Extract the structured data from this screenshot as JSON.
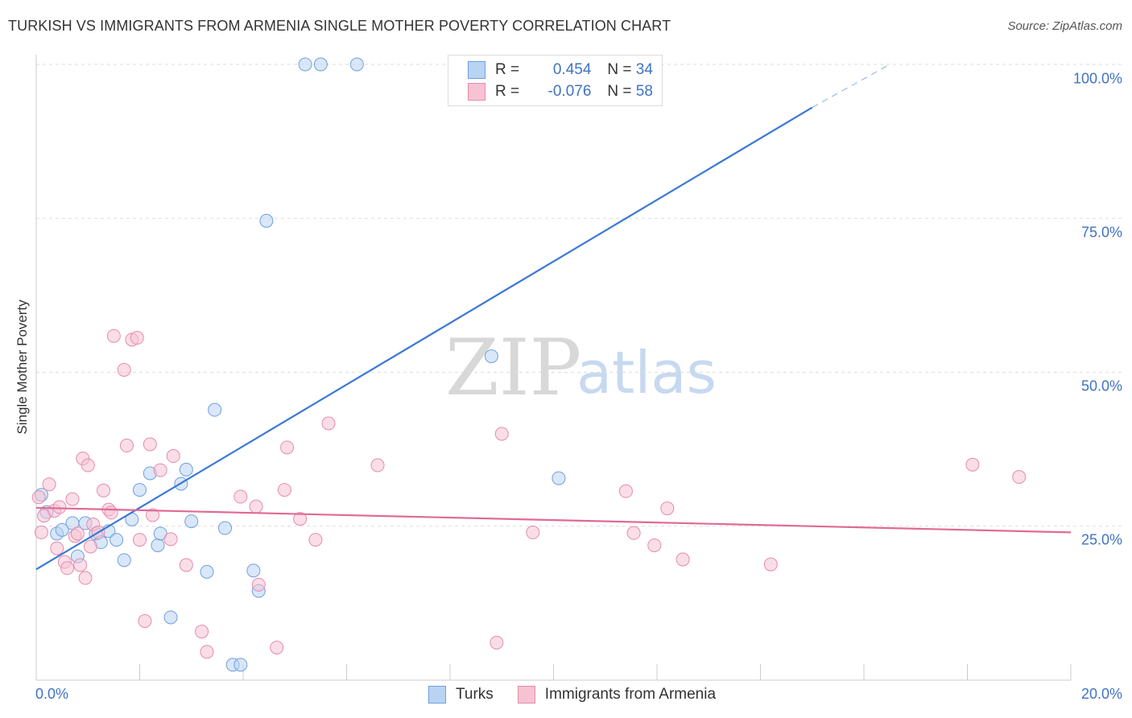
{
  "title": "TURKISH VS IMMIGRANTS FROM ARMENIA SINGLE MOTHER POVERTY CORRELATION CHART",
  "source": "Source: ZipAtlas.com",
  "watermark": {
    "zip": "ZIP",
    "atlas": "atlas"
  },
  "colors": {
    "blue": "#3b78d4",
    "blue_fill": "#b9d3f3",
    "pink": "#e06a96",
    "pink_fill": "#f6c3d3",
    "grid": "#dddddd",
    "tick_text": "#3f73c4"
  },
  "legend": {
    "rows": [
      {
        "r_label": "R =",
        "r_value": "0.454",
        "n_label": "N =",
        "n_value": "34"
      },
      {
        "r_label": "R =",
        "r_value": "-0.076",
        "n_label": "N =",
        "n_value": "58"
      }
    ]
  },
  "bottom_legend": [
    "Turks",
    "Immigrants from Armenia"
  ],
  "chart_data": {
    "type": "scatter",
    "ylabel": "Single Mother Poverty",
    "xlim": [
      0,
      20
    ],
    "ylim": [
      0,
      100
    ],
    "x_tick_labels": [
      "0.0%",
      "20.0%"
    ],
    "y_tick_labels": [
      "25.0%",
      "50.0%",
      "75.0%",
      "100.0%"
    ],
    "y_ticks": [
      25,
      50,
      75,
      100
    ],
    "grid": true,
    "series": [
      {
        "name": "Turks",
        "r": 0.454,
        "n": 34,
        "trend": {
          "x": [
            0,
            15
          ],
          "y": [
            18,
            93
          ],
          "dashed_extension_to": [
            16.5,
            100
          ]
        },
        "points": [
          [
            0.1,
            30.1
          ],
          [
            0.2,
            27.3
          ],
          [
            0.4,
            23.8
          ],
          [
            0.5,
            24.4
          ],
          [
            0.7,
            25.5
          ],
          [
            0.8,
            20.1
          ],
          [
            0.95,
            25.5
          ],
          [
            1.15,
            23.8
          ],
          [
            1.25,
            22.4
          ],
          [
            1.4,
            24.2
          ],
          [
            1.55,
            22.8
          ],
          [
            1.7,
            19.5
          ],
          [
            1.85,
            26.1
          ],
          [
            2.0,
            30.9
          ],
          [
            2.2,
            33.6
          ],
          [
            2.35,
            21.9
          ],
          [
            2.4,
            23.8
          ],
          [
            2.6,
            10.2
          ],
          [
            2.8,
            31.9
          ],
          [
            2.9,
            34.2
          ],
          [
            3.0,
            25.8
          ],
          [
            3.3,
            17.6
          ],
          [
            3.45,
            43.9
          ],
          [
            3.65,
            24.7
          ],
          [
            3.8,
            2.5
          ],
          [
            3.95,
            2.5
          ],
          [
            4.2,
            17.8
          ],
          [
            4.3,
            14.5
          ],
          [
            4.45,
            74.6
          ],
          [
            5.2,
            100
          ],
          [
            5.5,
            100
          ],
          [
            6.2,
            100
          ],
          [
            8.8,
            52.6
          ],
          [
            10.1,
            32.8
          ]
        ]
      },
      {
        "name": "Immigrants from Armenia",
        "r": -0.076,
        "n": 58,
        "trend": {
          "x": [
            0,
            20
          ],
          "y": [
            28,
            24
          ]
        },
        "points": [
          [
            0.05,
            29.7
          ],
          [
            0.1,
            24.0
          ],
          [
            0.15,
            26.7
          ],
          [
            0.25,
            31.8
          ],
          [
            0.35,
            27.5
          ],
          [
            0.4,
            21.4
          ],
          [
            0.45,
            28.1
          ],
          [
            0.55,
            19.2
          ],
          [
            0.6,
            18.2
          ],
          [
            0.7,
            29.4
          ],
          [
            0.75,
            23.4
          ],
          [
            0.8,
            23.8
          ],
          [
            0.85,
            18.7
          ],
          [
            0.9,
            36.0
          ],
          [
            0.95,
            16.6
          ],
          [
            1.0,
            34.9
          ],
          [
            1.05,
            21.7
          ],
          [
            1.1,
            25.3
          ],
          [
            1.2,
            24.0
          ],
          [
            1.3,
            30.8
          ],
          [
            1.4,
            27.7
          ],
          [
            1.45,
            27.2
          ],
          [
            1.5,
            55.9
          ],
          [
            1.7,
            50.4
          ],
          [
            1.75,
            38.1
          ],
          [
            1.85,
            55.3
          ],
          [
            1.95,
            55.6
          ],
          [
            2.0,
            22.8
          ],
          [
            2.1,
            9.6
          ],
          [
            2.2,
            38.3
          ],
          [
            2.25,
            26.8
          ],
          [
            2.4,
            34.1
          ],
          [
            2.6,
            22.9
          ],
          [
            2.65,
            36.4
          ],
          [
            2.9,
            18.7
          ],
          [
            3.2,
            7.9
          ],
          [
            3.3,
            4.6
          ],
          [
            3.95,
            29.8
          ],
          [
            4.25,
            28.2
          ],
          [
            4.3,
            15.5
          ],
          [
            4.65,
            5.3
          ],
          [
            4.8,
            30.9
          ],
          [
            4.85,
            37.8
          ],
          [
            5.1,
            26.2
          ],
          [
            5.4,
            22.8
          ],
          [
            5.65,
            41.7
          ],
          [
            6.6,
            34.9
          ],
          [
            8.9,
            6.1
          ],
          [
            9.0,
            40.0
          ],
          [
            9.6,
            24.0
          ],
          [
            11.4,
            30.7
          ],
          [
            11.55,
            23.9
          ],
          [
            11.95,
            21.9
          ],
          [
            12.2,
            27.9
          ],
          [
            12.5,
            19.6
          ],
          [
            14.2,
            18.8
          ],
          [
            18.1,
            35.0
          ],
          [
            19.0,
            33.0
          ]
        ]
      }
    ]
  }
}
